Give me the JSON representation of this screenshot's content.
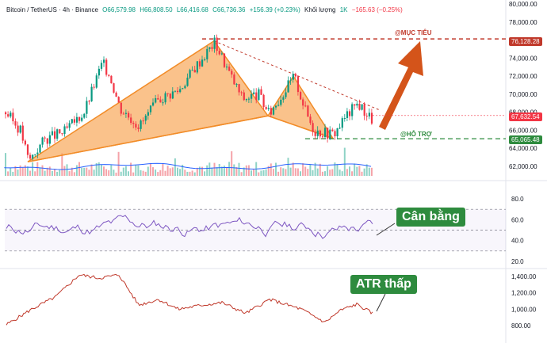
{
  "header": {
    "title": "Bitcoin / TetherUS · 4h · Binance",
    "open": "O66,579.98",
    "high": "H66,808.50",
    "low": "L66,416.68",
    "close": "C66,736.36",
    "change": "+156.39 (+0.23%)",
    "volume_label": "Khối lượng",
    "volume_unit": "1K",
    "volume_change": "−165.63 (−0.25%)"
  },
  "price_axis": [
    "80,000.00",
    "78,000.00",
    "76,000.00",
    "74,000.00",
    "72,000.00",
    "70,000.00",
    "68,000.00",
    "66,000.00",
    "64,000.00",
    "62,000.00"
  ],
  "rsi_axis": [
    "80.0",
    "60.0",
    "40.0",
    "20.0"
  ],
  "atr_axis": [
    "1,400.00",
    "1,200.00",
    "1,000.00",
    "800.00"
  ],
  "price_tags": {
    "target": "76,128.28",
    "current": "67,632.54",
    "support": "65,065.48"
  },
  "labels": {
    "target": "@MỤC TIÊU",
    "support": "@HỖ TRỢ"
  },
  "annotations": {
    "rsi": "Cân bằng",
    "atr": "ATR thấp"
  },
  "colors": {
    "up": "#089981",
    "down": "#f23645",
    "pattern_fill": "#f7a14d",
    "target": "#c0392b",
    "support": "#2e8b3e",
    "rsi_line": "#7e57c2",
    "atr_line": "#c0392b",
    "volume_ma": "#2962ff"
  },
  "pattern_points": {
    "p0": 62500,
    "p1": 75900,
    "p2": 67600,
    "p3": 72000,
    "p4": 65100
  }
}
